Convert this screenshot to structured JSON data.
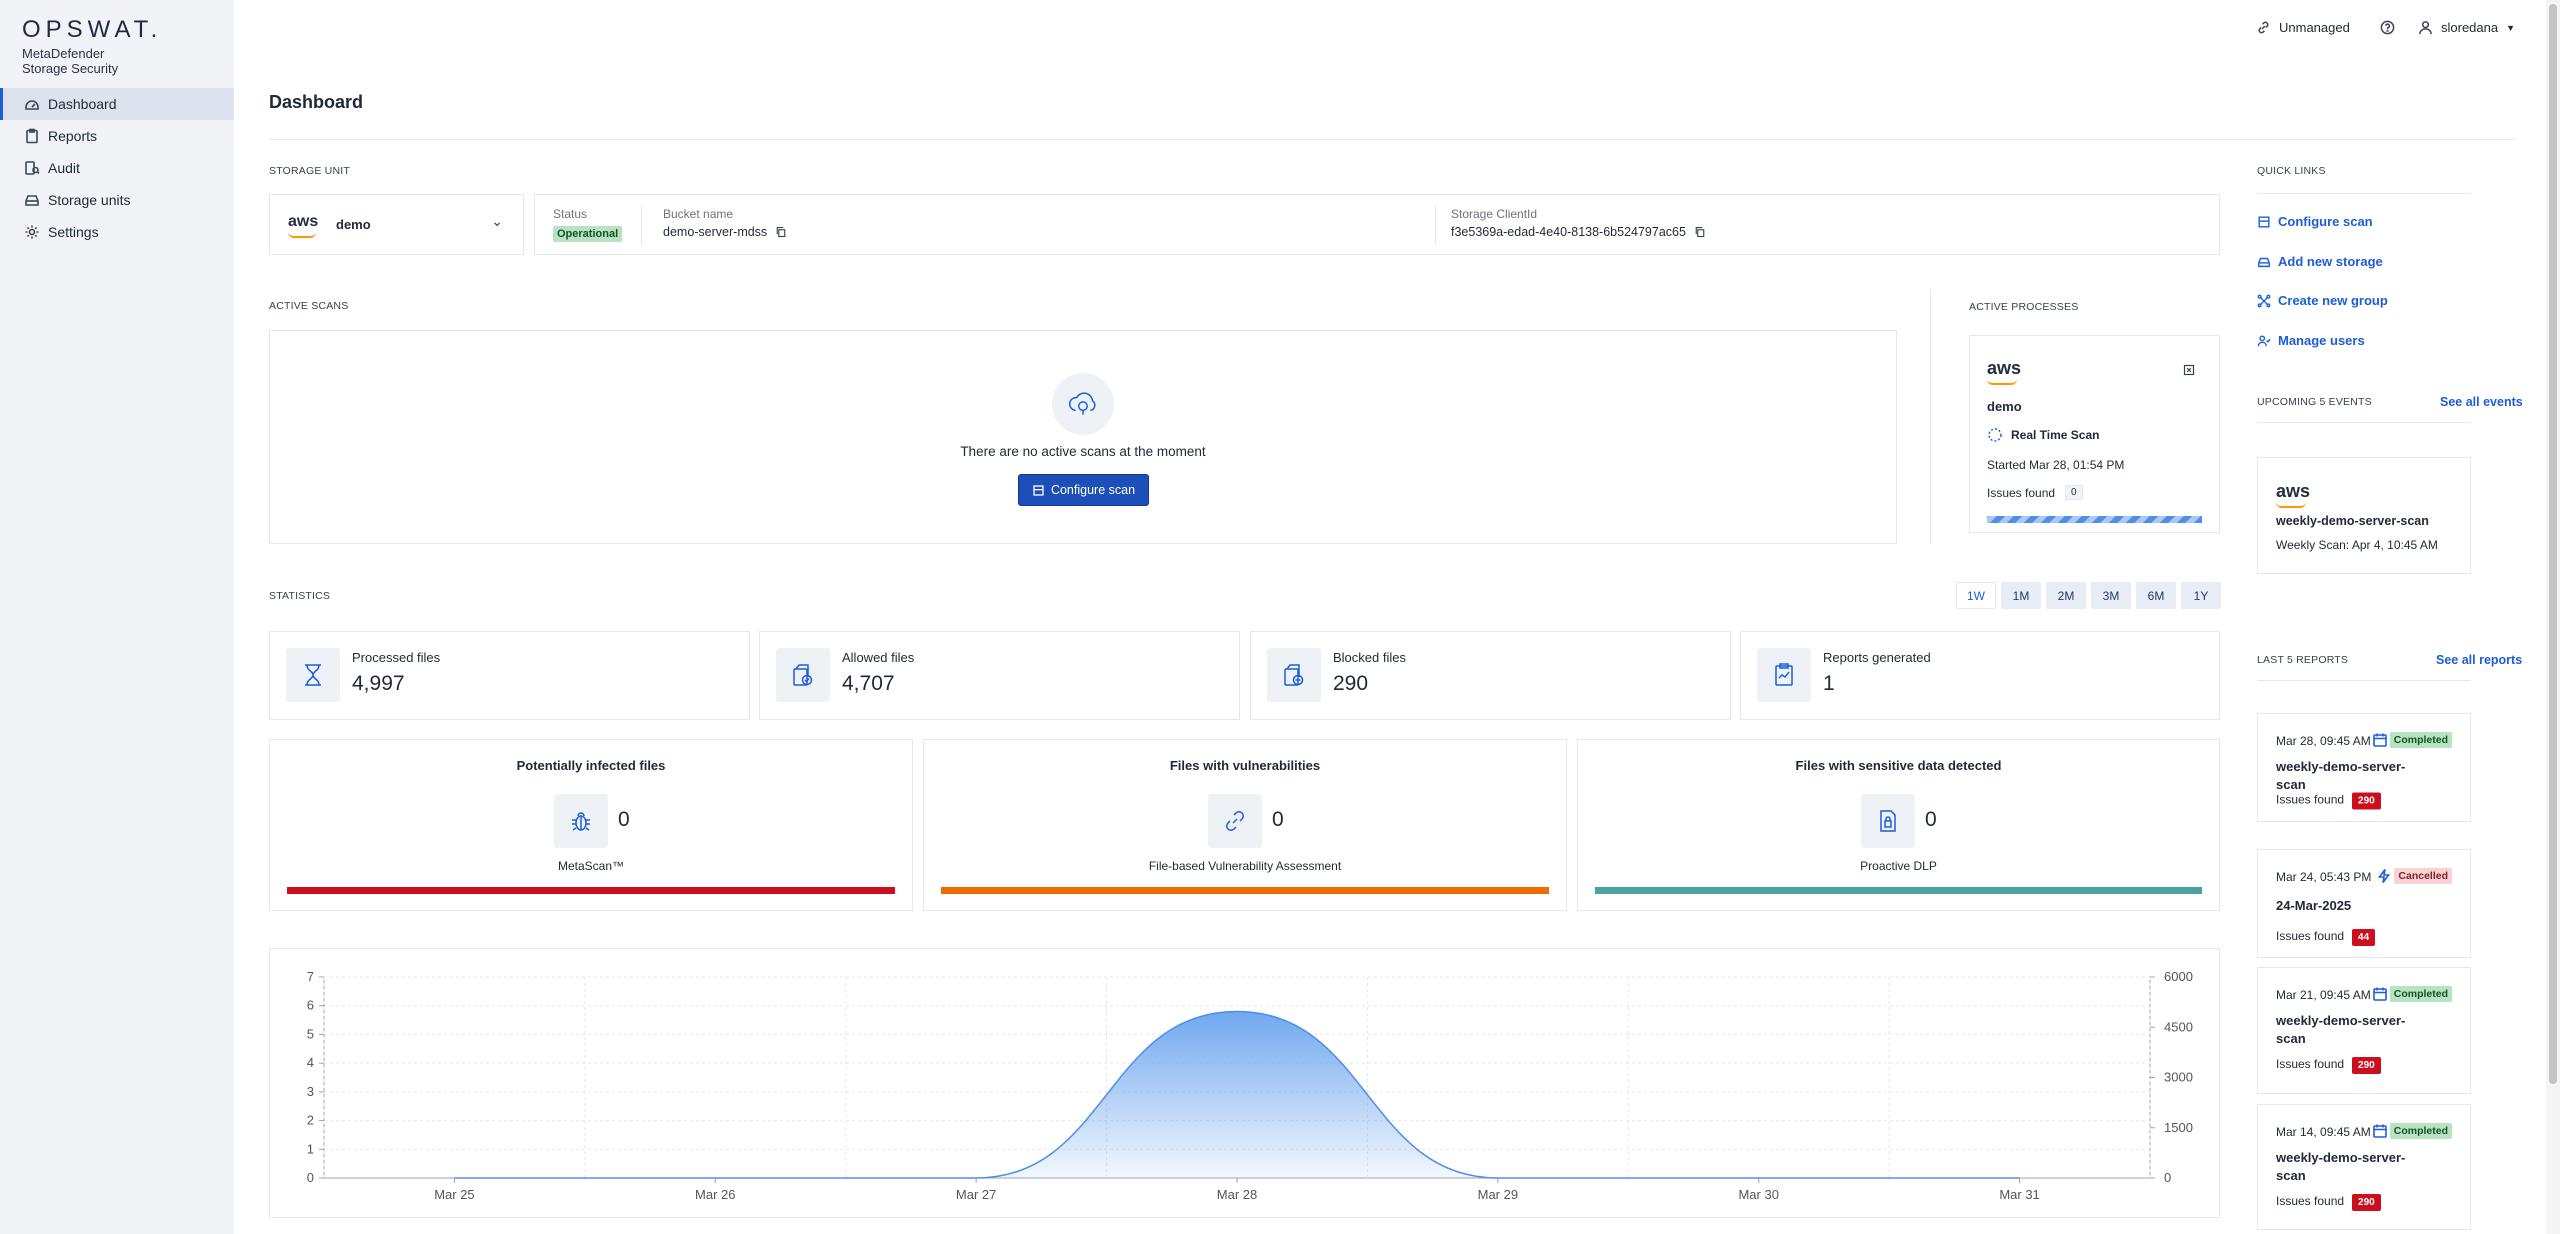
{
  "brand": {
    "name": "OPSWAT.",
    "product_line1": "MetaDefender",
    "product_line2": "Storage Security"
  },
  "sidebar": {
    "items": [
      {
        "label": "Dashboard",
        "icon": "dashboard-icon",
        "active": true
      },
      {
        "label": "Reports",
        "icon": "clipboard-icon"
      },
      {
        "label": "Audit",
        "icon": "audit-icon"
      },
      {
        "label": "Storage units",
        "icon": "storage-icon"
      },
      {
        "label": "Settings",
        "icon": "gear-icon"
      }
    ]
  },
  "topbar": {
    "unmanaged": "Unmanaged",
    "user": "sloredana"
  },
  "page": {
    "title": "Dashboard"
  },
  "storage_unit": {
    "label": "STORAGE UNIT",
    "selected": "demo",
    "provider": "aws",
    "status_label": "Status",
    "status_value": "Operational",
    "bucket_label": "Bucket name",
    "bucket_value": "demo-server-mdss",
    "client_label": "Storage ClientId",
    "client_value": "f3e5369a-edad-4e40-8138-6b524797ac65"
  },
  "active_scans": {
    "label": "ACTIVE SCANS",
    "empty_text": "There are no active scans at the moment",
    "button": "Configure scan"
  },
  "active_processes": {
    "label": "ACTIVE PROCESSES",
    "provider": "aws",
    "name": "demo",
    "scan_type": "Real Time Scan",
    "started": "Started Mar 28, 01:54 PM",
    "issues_label": "Issues found",
    "issues_value": "0"
  },
  "quick_links": {
    "label": "QUICK LINKS",
    "items": [
      {
        "label": "Configure scan",
        "icon": "scan-icon"
      },
      {
        "label": "Add new storage",
        "icon": "storage-icon"
      },
      {
        "label": "Create new group",
        "icon": "group-icon"
      },
      {
        "label": "Manage users",
        "icon": "users-icon"
      }
    ]
  },
  "events": {
    "label": "UPCOMING 5 EVENTS",
    "see_all": "See all events",
    "items": [
      {
        "provider": "aws",
        "name": "weekly-demo-server-scan",
        "detail": "Weekly Scan: Apr 4, 10:45 AM"
      }
    ]
  },
  "statistics": {
    "label": "STATISTICS",
    "periods": [
      "1W",
      "1M",
      "2M",
      "3M",
      "6M",
      "1Y"
    ],
    "active_period": "1W",
    "cards": [
      {
        "label": "Processed files",
        "value": "4,997"
      },
      {
        "label": "Allowed files",
        "value": "4,707"
      },
      {
        "label": "Blocked files",
        "value": "290"
      },
      {
        "label": "Reports generated",
        "value": "1"
      }
    ],
    "threats": [
      {
        "title": "Potentially infected files",
        "value": "0",
        "engine": "MetaScan™",
        "color": "#cc0f1f"
      },
      {
        "title": "Files with vulnerabilities",
        "value": "0",
        "engine": "File-based Vulnerability Assessment",
        "color": "#ef6c00"
      },
      {
        "title": "Files with sensitive data detected",
        "value": "0",
        "engine": "Proactive DLP",
        "color": "#4aa3a0"
      }
    ]
  },
  "reports": {
    "label": "LAST 5 REPORTS",
    "see_all": "See all reports",
    "issues_label": "Issues found",
    "items": [
      {
        "date": "Mar 28, 09:45 AM",
        "name": "weekly-demo-server-scan",
        "status": "Completed",
        "issues": "290"
      },
      {
        "date": "Mar 24, 05:43 PM",
        "name": "24-Mar-2025",
        "status": "Cancelled",
        "issues": "44"
      },
      {
        "date": "Mar 21, 09:45 AM",
        "name": "weekly-demo-server-scan",
        "status": "Completed",
        "issues": "290"
      },
      {
        "date": "Mar 14, 09:45 AM",
        "name": "weekly-demo-server-scan",
        "status": "Completed",
        "issues": "290"
      }
    ]
  },
  "chart_data": {
    "type": "area",
    "x": [
      "Mar 25",
      "Mar 26",
      "Mar 27",
      "Mar 28",
      "Mar 29",
      "Mar 30",
      "Mar 31"
    ],
    "series": [
      {
        "values": [
          0,
          0,
          0,
          5.8,
          0,
          0,
          0
        ]
      }
    ],
    "left_ticks": [
      "0",
      "1",
      "2",
      "3",
      "4",
      "5",
      "6",
      "7"
    ],
    "right_ticks": [
      "0",
      "1500",
      "3000",
      "4500",
      "6000"
    ],
    "ylim": [
      0,
      7
    ],
    "grid": true,
    "color": "#4f8fe8"
  }
}
